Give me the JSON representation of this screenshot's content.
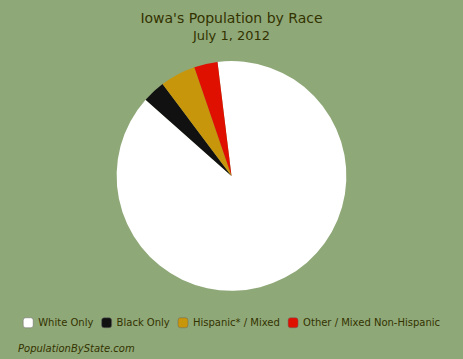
{
  "chart_data": {
    "type": "pie",
    "title": "Iowa's Population by Race",
    "subtitle": "July 1, 2012",
    "categories": [
      "White Only",
      "Black Only",
      "Hispanic* / Mixed",
      "Other / Mixed Non-Hispanic"
    ],
    "values": [
      88.5,
      3.2,
      5.0,
      3.3
    ],
    "colors": [
      "#FFFFFF",
      "#111111",
      "#C8960A",
      "#E01000"
    ],
    "legend": "bottom",
    "annotations": [
      "PopulationByState.com"
    ]
  }
}
